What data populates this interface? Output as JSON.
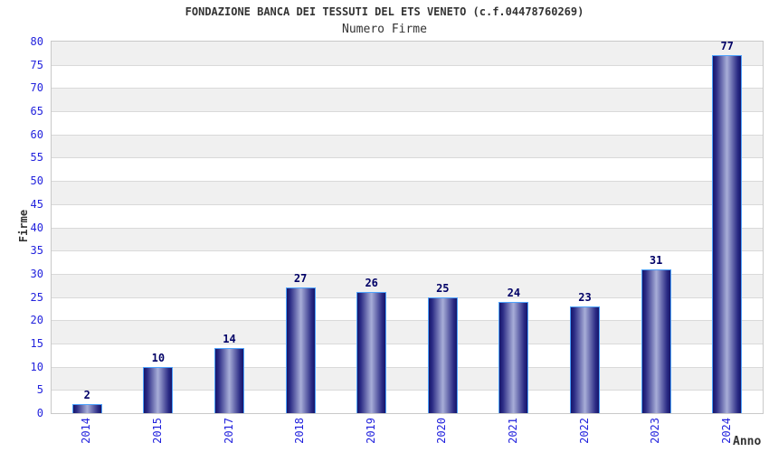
{
  "header": {
    "title": "FONDAZIONE BANCA DEI TESSUTI DEL ETS VENETO (c.f.04478760269)",
    "subtitle": "Numero Firme"
  },
  "chart_data": {
    "type": "bar",
    "title": "FONDAZIONE BANCA DEI TESSUTI DEL ETS VENETO (c.f.04478760269)",
    "subtitle": "Numero Firme",
    "xlabel": "Anno",
    "ylabel": "Firme",
    "categories": [
      "2014",
      "2015",
      "2017",
      "2018",
      "2019",
      "2020",
      "2021",
      "2022",
      "2023",
      "2024"
    ],
    "values": [
      2,
      10,
      14,
      27,
      26,
      25,
      24,
      23,
      31,
      77
    ],
    "ylim": [
      0,
      80
    ],
    "ytick_step": 5,
    "grid": "horizontal",
    "background_bands": "alternating",
    "legend": "none",
    "value_labels": "above-bars",
    "category_label_rotation": 90,
    "colors": {
      "bar_edge_dark": "#15156a",
      "bar_shoulder": "#2b2b85",
      "bar_center_light": "#a8aed8",
      "bar_border": "#4da2fc",
      "band_alt": "#f0f0f0",
      "band_base": "#ffffff",
      "grid_line": "#d9d9d9",
      "plot_border": "#c9c9c9",
      "tick_text": "#2222dd",
      "value_text": "#000066",
      "axis_title_text": "#333333",
      "title_text": "#333333"
    }
  }
}
